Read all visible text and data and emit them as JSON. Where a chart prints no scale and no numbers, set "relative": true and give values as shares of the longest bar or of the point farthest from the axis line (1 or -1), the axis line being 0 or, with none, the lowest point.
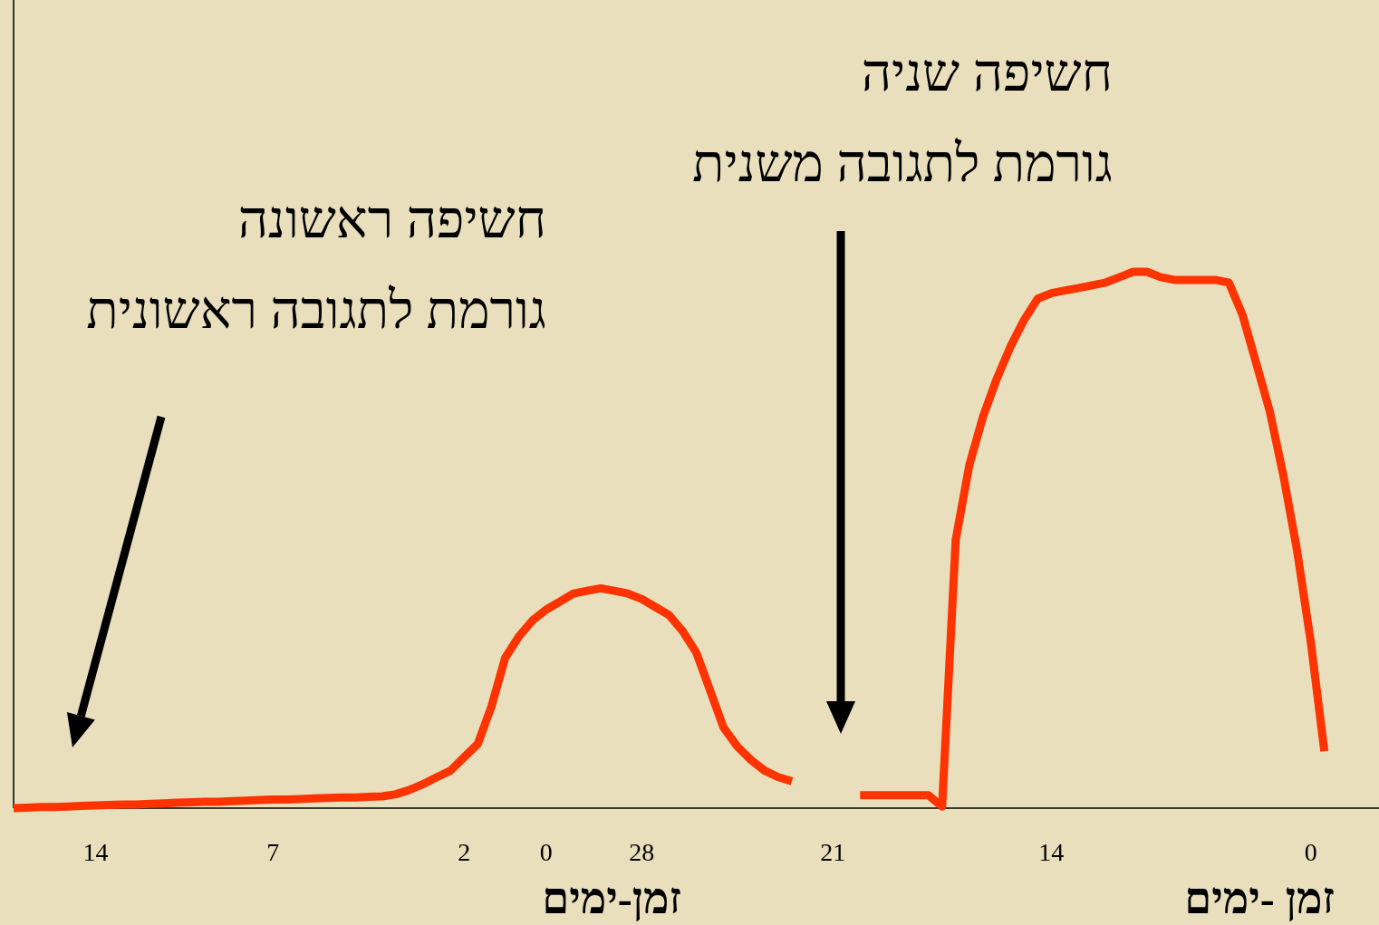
{
  "chart_data": {
    "type": "line",
    "relative": true,
    "xlabel": "זמן-ימים",
    "categories": [
      null,
      null,
      null,
      null,
      null,
      null,
      "14",
      null,
      null,
      null,
      null,
      null,
      null,
      null,
      null,
      null,
      null,
      null,
      null,
      "7",
      null,
      null,
      null,
      null,
      null,
      null,
      null,
      null,
      null,
      null,
      null,
      null,
      null,
      "2",
      null,
      null,
      null,
      null,
      null,
      "0",
      null,
      null,
      null,
      null,
      null,
      null,
      "28",
      null,
      null,
      null,
      null,
      null,
      null,
      null,
      null,
      null,
      null,
      null,
      null,
      null,
      "21",
      null,
      null,
      null,
      null,
      null,
      null,
      null,
      null,
      null,
      null,
      null,
      null,
      null,
      null,
      null,
      "14",
      null,
      null,
      null,
      null,
      null,
      null,
      null,
      null,
      null,
      null,
      null,
      null,
      null,
      null,
      null,
      null,
      null,
      null,
      "0",
      null,
      null,
      null,
      null,
      null
    ],
    "series": [
      {
        "color": "#ff3300",
        "values": [
          0,
          0.001,
          0.002,
          0.002,
          0.003,
          0.004,
          0.005,
          0.006,
          0.007,
          0.007,
          0.008,
          0.009,
          0.01,
          0.011,
          0.012,
          0.012,
          0.013,
          0.014,
          0.015,
          0.016,
          0.016,
          0.017,
          0.018,
          0.019,
          0.02,
          0.02,
          0.021,
          0.022,
          0.026,
          0.034,
          0.045,
          0.058,
          0.07,
          0.095,
          0.12,
          0.19,
          0.28,
          0.32,
          0.35,
          0.37,
          0.385,
          0.4,
          0.405,
          0.41,
          0.405,
          0.4,
          0.39,
          0.375,
          0.36,
          0.33,
          0.29,
          0.22,
          0.15,
          0.115,
          0.09,
          0.07,
          0.058,
          0.05,
          null,
          null,
          null,
          null,
          0.024,
          0.024,
          0.024,
          0.024,
          0.024,
          0.024,
          0.003,
          0.5,
          0.64,
          0.73,
          0.8,
          0.86,
          0.91,
          0.95,
          0.96,
          0.965,
          0.97,
          0.975,
          0.98,
          0.99,
          1.0,
          1.0,
          0.99,
          0.985,
          0.985,
          0.985,
          0.985,
          0.98,
          0.92,
          0.83,
          0.74,
          0.62,
          0.48,
          0.31,
          0.106,
          null,
          null,
          null,
          null
        ]
      }
    ],
    "annotations": [
      "חשיפה ראשונה\nגורמת לתגובה ראשונית",
      "חשיפה שניה\nגורמת לתגובה משנית",
      "זמן -ימים"
    ],
    "marker": "none",
    "line_style": "solid"
  }
}
